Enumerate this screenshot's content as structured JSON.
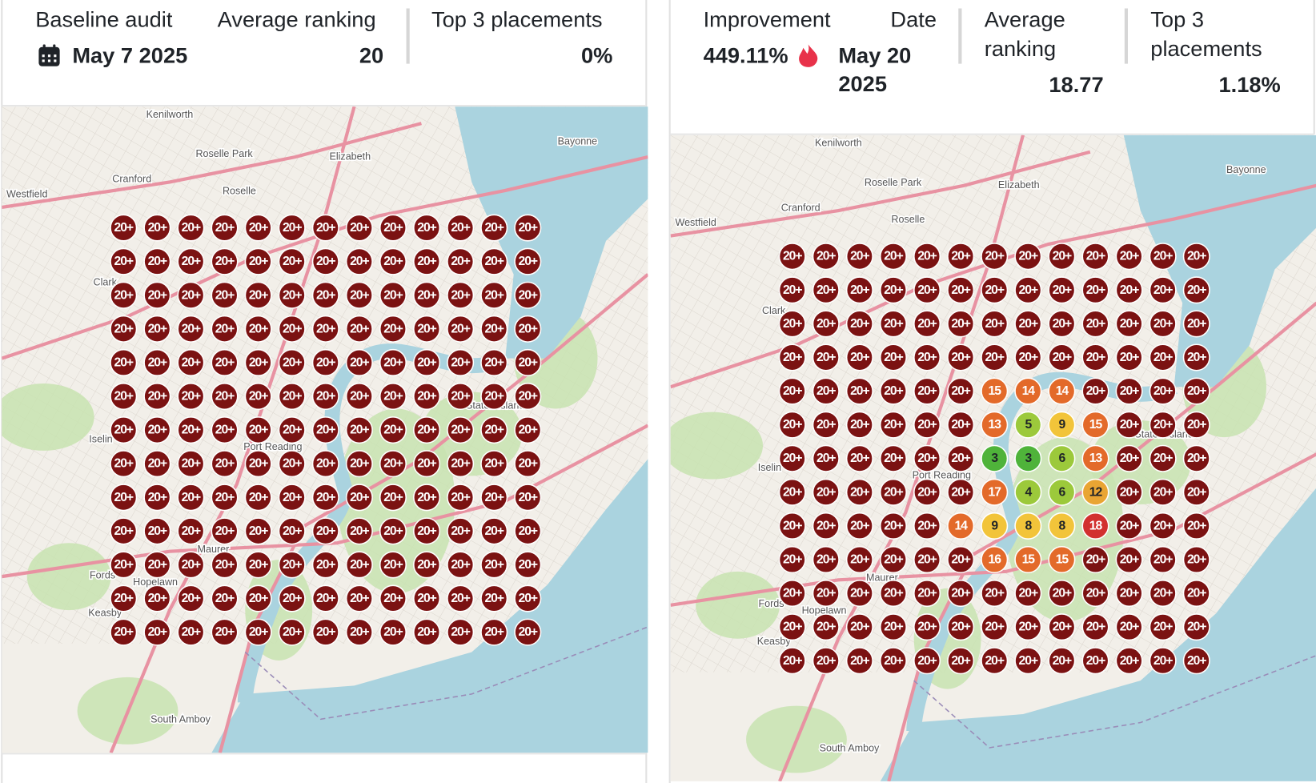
{
  "left": {
    "title": "Baseline audit",
    "date": "May 7 2025",
    "avg_label": "Average ranking",
    "avg": "20",
    "top3_label": "Top 3 placements",
    "top3": "0%",
    "map_labels": [
      "Kenilworth",
      "Roselle Park",
      "Elizabeth",
      "Bayonne",
      "Cranford",
      "Roselle",
      "Westfield",
      "Clark",
      "Iselin",
      "Port Reading",
      "Staten Island",
      "Maurer",
      "Fords",
      "Hopelawn",
      "Keasby",
      "South Amboy"
    ],
    "grid": [
      [
        "20+",
        "20+",
        "20+",
        "20+",
        "20+",
        "20+",
        "20+",
        "20+",
        "20+",
        "20+",
        "20+",
        "20+",
        "20+"
      ],
      [
        "20+",
        "20+",
        "20+",
        "20+",
        "20+",
        "20+",
        "20+",
        "20+",
        "20+",
        "20+",
        "20+",
        "20+",
        "20+"
      ],
      [
        "20+",
        "20+",
        "20+",
        "20+",
        "20+",
        "20+",
        "20+",
        "20+",
        "20+",
        "20+",
        "20+",
        "20+",
        "20+"
      ],
      [
        "20+",
        "20+",
        "20+",
        "20+",
        "20+",
        "20+",
        "20+",
        "20+",
        "20+",
        "20+",
        "20+",
        "20+",
        "20+"
      ],
      [
        "20+",
        "20+",
        "20+",
        "20+",
        "20+",
        "20+",
        "20+",
        "20+",
        "20+",
        "20+",
        "20+",
        "20+",
        "20+"
      ],
      [
        "20+",
        "20+",
        "20+",
        "20+",
        "20+",
        "20+",
        "20+",
        "20+",
        "20+",
        "20+",
        "20+",
        "20+",
        "20+"
      ],
      [
        "20+",
        "20+",
        "20+",
        "20+",
        "20+",
        "20+",
        "20+",
        "20+",
        "20+",
        "20+",
        "20+",
        "20+",
        "20+"
      ],
      [
        "20+",
        "20+",
        "20+",
        "20+",
        "20+",
        "20+",
        "20+",
        "20+",
        "20+",
        "20+",
        "20+",
        "20+",
        "20+"
      ],
      [
        "20+",
        "20+",
        "20+",
        "20+",
        "20+",
        "20+",
        "20+",
        "20+",
        "20+",
        "20+",
        "20+",
        "20+",
        "20+"
      ],
      [
        "20+",
        "20+",
        "20+",
        "20+",
        "20+",
        "20+",
        "20+",
        "20+",
        "20+",
        "20+",
        "20+",
        "20+",
        "20+"
      ],
      [
        "20+",
        "20+",
        "20+",
        "20+",
        "20+",
        "20+",
        "20+",
        "20+",
        "20+",
        "20+",
        "20+",
        "20+",
        "20+"
      ],
      [
        "20+",
        "20+",
        "20+",
        "20+",
        "20+",
        "20+",
        "20+",
        "20+",
        "20+",
        "20+",
        "20+",
        "20+",
        "20+"
      ],
      [
        "20+",
        "20+",
        "20+",
        "20+",
        "20+",
        "20+",
        "20+",
        "20+",
        "20+",
        "20+",
        "20+",
        "20+",
        "20+"
      ]
    ]
  },
  "right": {
    "improvement_label": "Improvement",
    "improvement": "449.11%",
    "date_label": "Date",
    "date_lines": [
      "May 20",
      "2025"
    ],
    "avg_label_lines": [
      "Average",
      "ranking"
    ],
    "avg": "18.77",
    "top3_label_lines": [
      "Top 3",
      "placements"
    ],
    "top3": "1.18%",
    "map_labels": [
      "Kenilworth",
      "Roselle Park",
      "Elizabeth",
      "Bayonne",
      "Cranford",
      "Roselle",
      "Westfield",
      "Clark",
      "Iselin",
      "Port Reading",
      "Staten Island",
      "Maurer",
      "Fords",
      "Hopelawn",
      "Keasby",
      "South Amboy"
    ],
    "grid": [
      [
        "20+",
        "20+",
        "20+",
        "20+",
        "20+",
        "20+",
        "20+",
        "20+",
        "20+",
        "20+",
        "20+",
        "20+",
        "20+"
      ],
      [
        "20+",
        "20+",
        "20+",
        "20+",
        "20+",
        "20+",
        "20+",
        "20+",
        "20+",
        "20+",
        "20+",
        "20+",
        "20+"
      ],
      [
        "20+",
        "20+",
        "20+",
        "20+",
        "20+",
        "20+",
        "20+",
        "20+",
        "20+",
        "20+",
        "20+",
        "20+",
        "20+"
      ],
      [
        "20+",
        "20+",
        "20+",
        "20+",
        "20+",
        "20+",
        "20+",
        "20+",
        "20+",
        "20+",
        "20+",
        "20+",
        "20+"
      ],
      [
        "20+",
        "20+",
        "20+",
        "20+",
        "20+",
        "20+",
        15,
        14,
        14,
        "20+",
        "20+",
        "20+",
        "20+"
      ],
      [
        "20+",
        "20+",
        "20+",
        "20+",
        "20+",
        "20+",
        13,
        5,
        9,
        15,
        "20+",
        "20+",
        "20+"
      ],
      [
        "20+",
        "20+",
        "20+",
        "20+",
        "20+",
        "20+",
        3,
        3,
        6,
        13,
        "20+",
        "20+",
        "20+"
      ],
      [
        "20+",
        "20+",
        "20+",
        "20+",
        "20+",
        "20+",
        17,
        4,
        6,
        12,
        "20+",
        "20+",
        "20+"
      ],
      [
        "20+",
        "20+",
        "20+",
        "20+",
        "20+",
        14,
        9,
        8,
        8,
        18,
        "20+",
        "20+",
        "20+"
      ],
      [
        "20+",
        "20+",
        "20+",
        "20+",
        "20+",
        "20+",
        16,
        15,
        15,
        "20+",
        "20+",
        "20+",
        "20+"
      ],
      [
        "20+",
        "20+",
        "20+",
        "20+",
        "20+",
        "20+",
        "20+",
        "20+",
        "20+",
        "20+",
        "20+",
        "20+",
        "20+"
      ],
      [
        "20+",
        "20+",
        "20+",
        "20+",
        "20+",
        "20+",
        "20+",
        "20+",
        "20+",
        "20+",
        "20+",
        "20+",
        "20+"
      ],
      [
        "20+",
        "20+",
        "20+",
        "20+",
        "20+",
        "20+",
        "20+",
        "20+",
        "20+",
        "20+",
        "20+",
        "20+",
        "20+"
      ]
    ]
  }
}
